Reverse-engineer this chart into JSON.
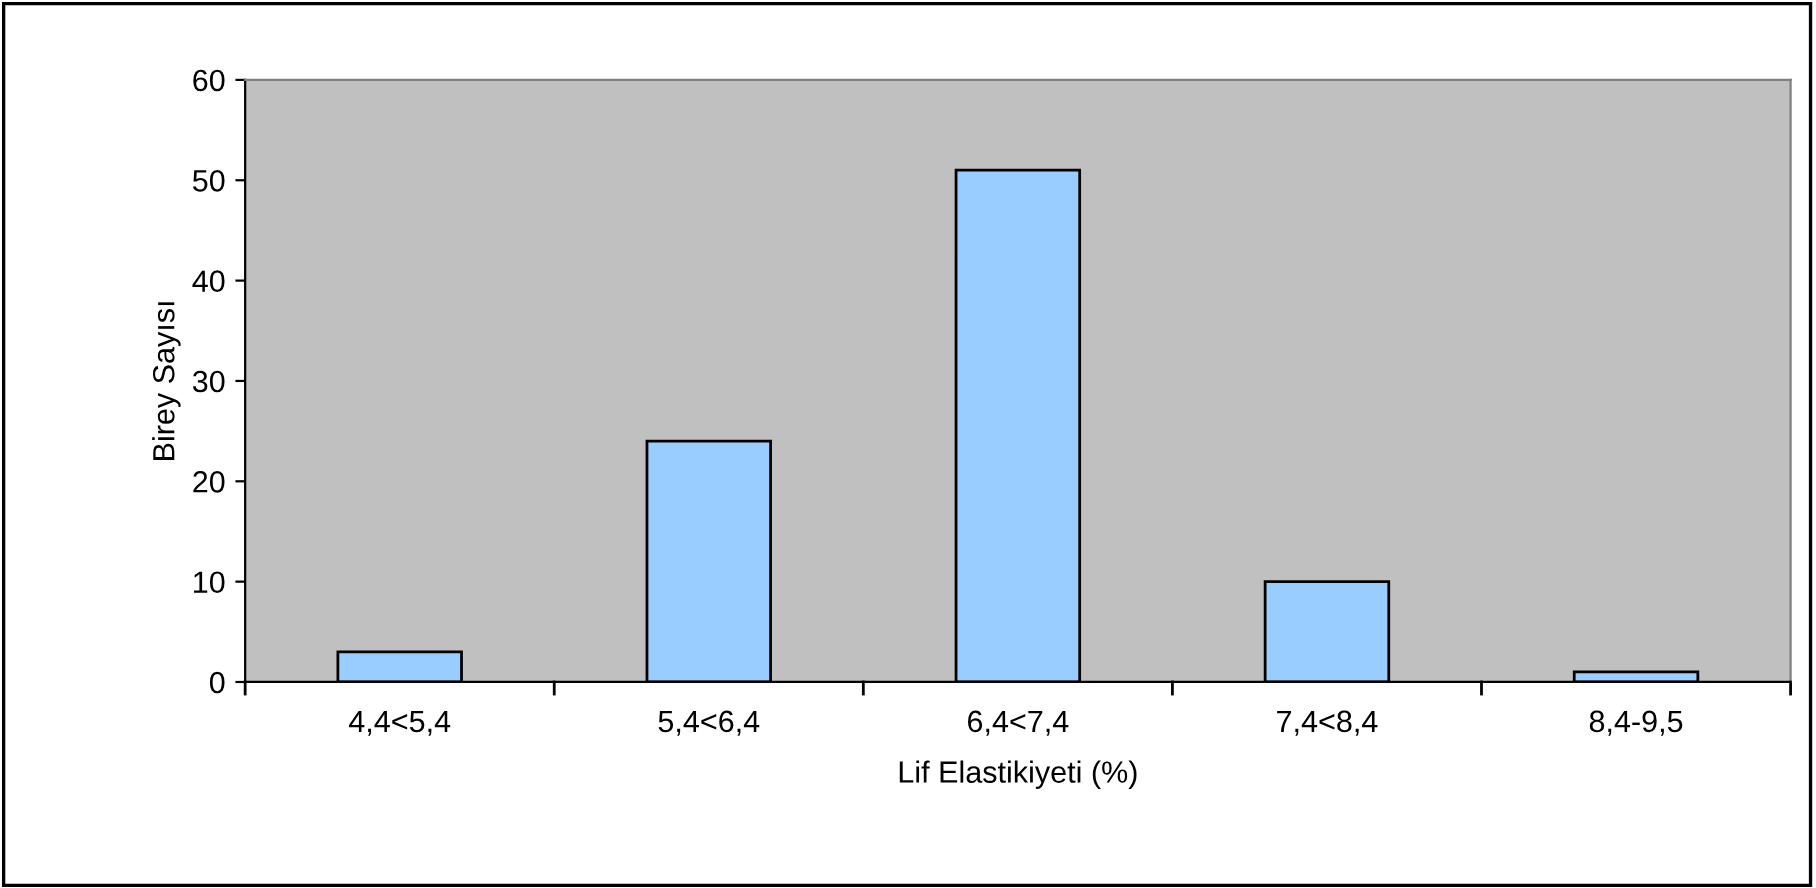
{
  "chart_data": {
    "type": "bar",
    "xlabel": "Lif Elastikiyeti (%)",
    "ylabel": "Birey Sayısı",
    "categories": [
      "4,4<5,4",
      "5,4<6,4",
      "6,4<7,4",
      "7,4<8,4",
      "8,4-9,5"
    ],
    "values": [
      3,
      24,
      51,
      10,
      1
    ],
    "color": "#99ccff",
    "ylim": [
      0,
      60
    ],
    "yticks": [
      0,
      10,
      20,
      30,
      40,
      50,
      60
    ],
    "grid": false
  }
}
